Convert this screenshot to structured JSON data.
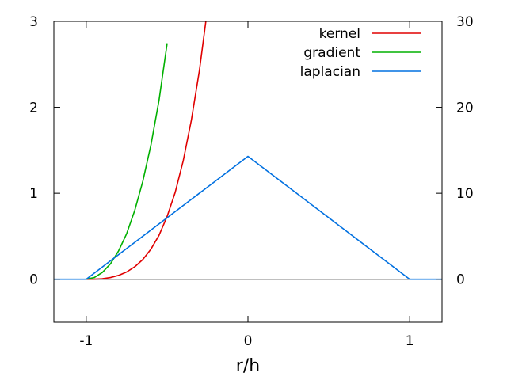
{
  "chart_data": {
    "type": "line",
    "title": "",
    "xlabel": "r/h",
    "ylabel": "",
    "y2label": "",
    "xlim": [
      -1.2,
      1.2
    ],
    "ylim": [
      -0.5,
      3
    ],
    "y2lim": [
      -5,
      30
    ],
    "xticks": [
      -1,
      0,
      1
    ],
    "xtick_labels": [
      "-1",
      "0",
      "1"
    ],
    "yticks": [
      0,
      1,
      2,
      3
    ],
    "ytick_labels": [
      "0",
      "1",
      "2",
      "3"
    ],
    "y2ticks": [
      0,
      10,
      20,
      30
    ],
    "y2tick_labels": [
      "0",
      "10",
      "20",
      "30"
    ],
    "grid": false,
    "zero_line": true,
    "legend_position": "top-right",
    "series": [
      {
        "name": "kernel",
        "color": "#e00000",
        "axis": "y2",
        "x": [
          -1.0,
          -0.95,
          -0.9,
          -0.85,
          -0.8,
          -0.75,
          -0.7,
          -0.65,
          -0.6,
          -0.55,
          -0.5,
          -0.45,
          -0.4,
          -0.35,
          -0.3,
          -0.25,
          -0.22,
          -0.22,
          -0.25,
          -0.3,
          -0.35,
          -0.4,
          -0.45,
          -0.5,
          -0.55,
          -0.6,
          -0.65,
          -0.7,
          -0.75,
          -0.8,
          -0.85,
          -0.9,
          -0.95,
          -1.0
        ],
        "y": [
          0,
          0.01,
          0.06,
          0.2,
          0.45,
          0.85,
          1.45,
          2.3,
          3.5,
          5.1,
          7.3,
          10.1,
          13.8,
          18.5,
          24.3,
          31.5,
          36.5,
          36.5,
          31.5,
          24.3,
          18.5,
          13.8,
          10.1,
          7.3,
          5.1,
          3.5,
          2.3,
          1.45,
          0.85,
          0.45,
          0.2,
          0.06,
          0.01,
          0
        ]
      },
      {
        "name": "gradient",
        "color": "#00b000",
        "axis": "y2",
        "x": [
          -1.0,
          -0.95,
          -0.9,
          -0.85,
          -0.8,
          -0.75,
          -0.7,
          -0.65,
          -0.6,
          -0.55,
          -0.5,
          -0.5,
          -0.55,
          -0.6,
          -0.65,
          -0.7,
          -0.75,
          -0.8,
          -0.85,
          -0.9,
          -0.95,
          -1.0
        ],
        "y": [
          0,
          0.2,
          0.8,
          1.8,
          3.3,
          5.3,
          8.0,
          11.4,
          15.6,
          20.8,
          27.4,
          27.4,
          20.8,
          15.6,
          11.4,
          8.0,
          5.3,
          3.3,
          1.8,
          0.8,
          0.2,
          0
        ]
      },
      {
        "name": "laplacian",
        "color": "#0070e0",
        "axis": "y1",
        "x": [
          -1.2,
          -1.0,
          0,
          1.0,
          1.2
        ],
        "y": [
          0,
          0,
          1.43,
          0,
          0
        ]
      }
    ]
  }
}
